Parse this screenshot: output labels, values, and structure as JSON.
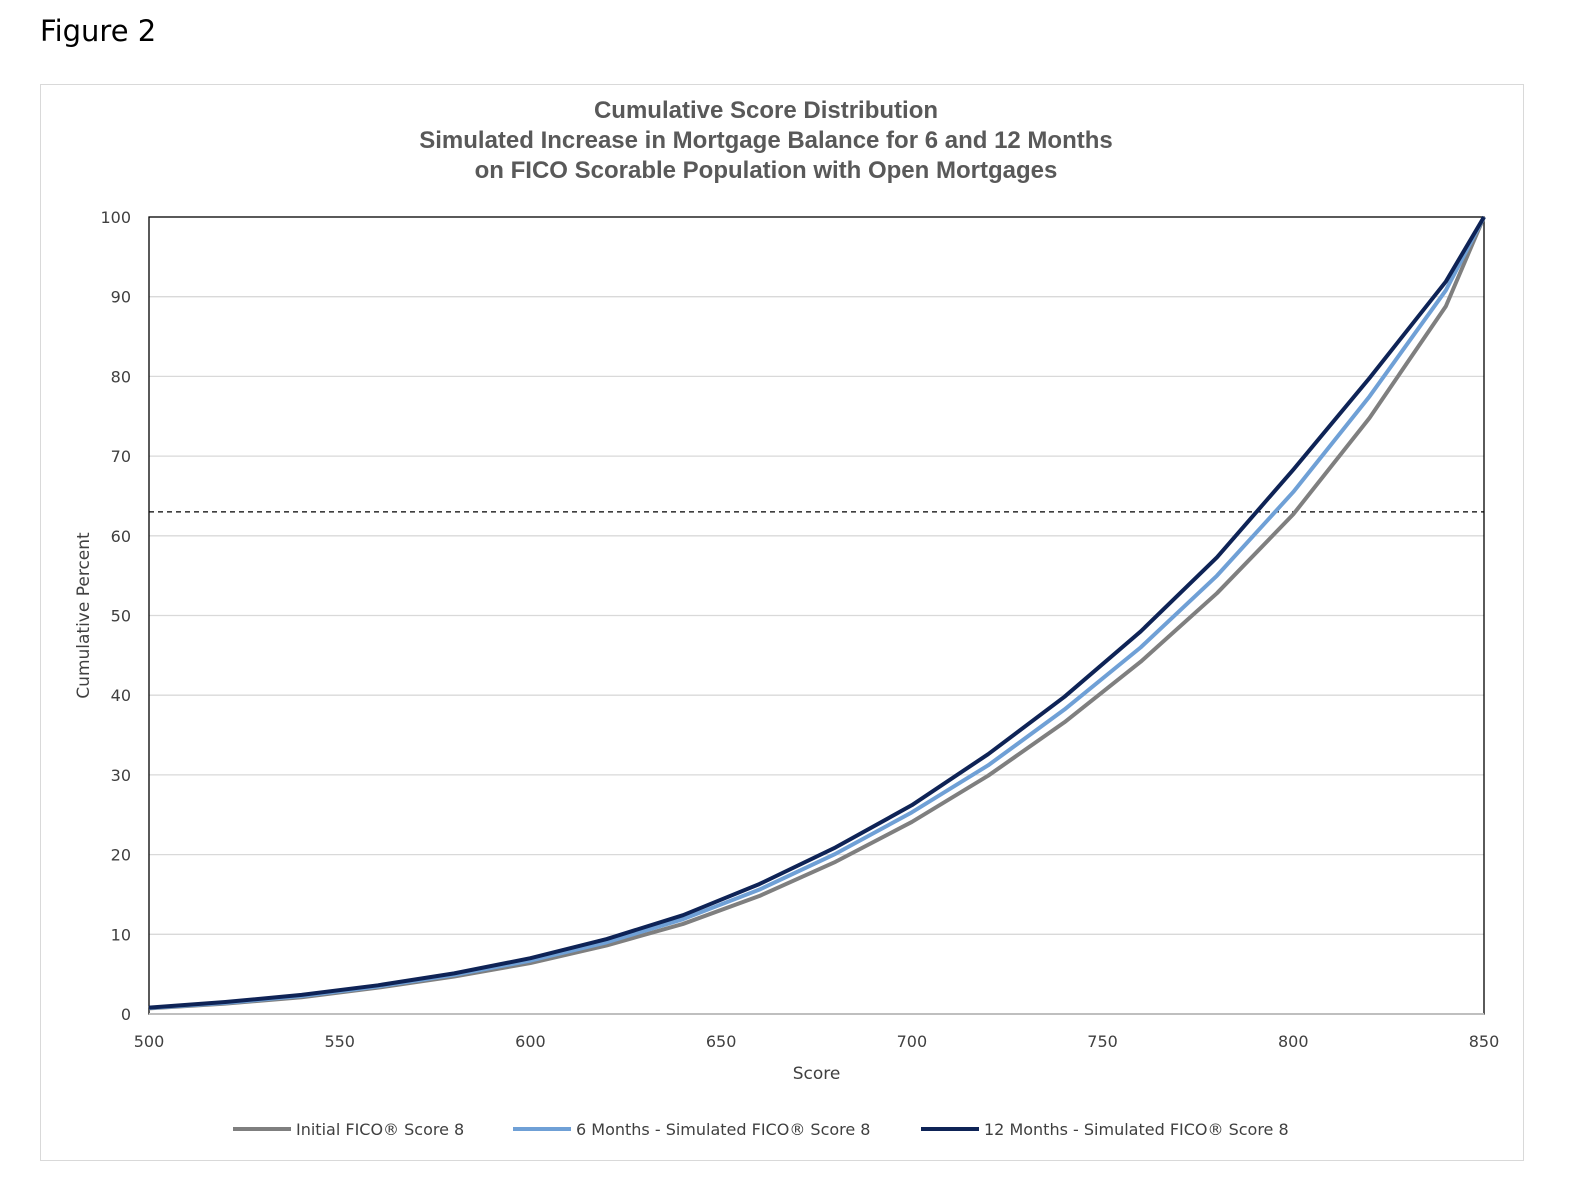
{
  "figure_label": "Figure 2",
  "chart_data": {
    "type": "line",
    "title": [
      "Cumulative Score Distribution",
      "Simulated Increase in Mortgage Balance for 6 and 12 Months",
      "on FICO Scorable Population with Open Mortgages"
    ],
    "xlabel": "Score",
    "ylabel": "Cumulative Percent",
    "xlim": [
      500,
      850
    ],
    "ylim": [
      0,
      100
    ],
    "xticks": [
      500,
      550,
      600,
      650,
      700,
      750,
      800,
      850
    ],
    "yticks": [
      0,
      10,
      20,
      30,
      40,
      50,
      60,
      70,
      80,
      90,
      100
    ],
    "grid": "horizontal",
    "legend_position": "bottom",
    "reference_line": {
      "y": 63,
      "style": "dashed",
      "color": "#000000"
    },
    "x": [
      500,
      520,
      540,
      560,
      580,
      600,
      620,
      640,
      660,
      680,
      700,
      720,
      740,
      760,
      780,
      800,
      820,
      840,
      850
    ],
    "series": [
      {
        "name": "Initial FICO® Score 8",
        "color": "#7f7f7f",
        "values": [
          0.7,
          1.3,
          2.1,
          3.3,
          4.7,
          6.4,
          8.6,
          11.3,
          14.8,
          19.1,
          24.1,
          29.9,
          36.6,
          44.2,
          52.8,
          62.7,
          74.8,
          88.8,
          100
        ]
      },
      {
        "name": "6 Months - Simulated FICO® Score 8",
        "color": "#6fa0d6",
        "values": [
          0.75,
          1.4,
          2.25,
          3.45,
          4.9,
          6.7,
          9.0,
          11.9,
          15.6,
          20.1,
          25.3,
          31.2,
          38.2,
          46.0,
          55.0,
          65.5,
          77.5,
          90.8,
          100
        ]
      },
      {
        "name": "12 Months - Simulated FICO® Score 8",
        "color": "#0e2356",
        "values": [
          0.8,
          1.5,
          2.4,
          3.6,
          5.1,
          7.0,
          9.4,
          12.4,
          16.3,
          20.9,
          26.2,
          32.6,
          39.8,
          48.0,
          57.3,
          68.3,
          79.8,
          91.9,
          100
        ]
      }
    ]
  }
}
